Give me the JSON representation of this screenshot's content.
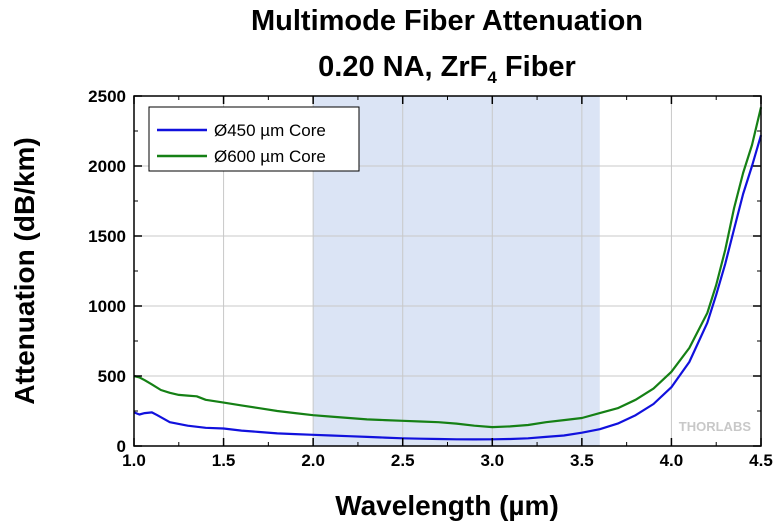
{
  "chart_data": {
    "type": "line",
    "title": "Multimode Fiber Attenuation",
    "subtitle_prefix": "0.20 NA, ZrF",
    "subtitle_subscript": "4",
    "subtitle_suffix": " Fiber",
    "xlabel": "Wavelength (µm)",
    "ylabel": "Attenuation (dB/km)",
    "xlim": [
      1.0,
      4.5
    ],
    "ylim": [
      0,
      2500
    ],
    "xticks": [
      "1.0",
      "1.5",
      "2.0",
      "2.5",
      "3.0",
      "3.5",
      "4.0",
      "4.5"
    ],
    "yticks": [
      "0",
      "500",
      "1000",
      "1500",
      "2000",
      "2500"
    ],
    "grid": true,
    "legend_position": "top-left",
    "highlight_band": {
      "x_start": 2.0,
      "x_end": 3.6,
      "color": "#dbe4f5"
    },
    "watermark": "THORLABS",
    "series": [
      {
        "name": "Ø450 µm Core",
        "color": "#1111dd",
        "x": [
          1.0,
          1.03,
          1.06,
          1.1,
          1.13,
          1.2,
          1.3,
          1.4,
          1.5,
          1.6,
          1.7,
          1.8,
          1.9,
          2.0,
          2.1,
          2.2,
          2.3,
          2.4,
          2.5,
          2.6,
          2.7,
          2.8,
          2.9,
          3.0,
          3.1,
          3.2,
          3.3,
          3.4,
          3.5,
          3.6,
          3.7,
          3.8,
          3.9,
          4.0,
          4.1,
          4.2,
          4.25,
          4.3,
          4.35,
          4.4,
          4.45,
          4.5
        ],
        "y": [
          240,
          225,
          235,
          240,
          220,
          170,
          145,
          130,
          125,
          110,
          100,
          90,
          85,
          80,
          75,
          70,
          65,
          60,
          55,
          52,
          50,
          48,
          47,
          48,
          50,
          55,
          65,
          75,
          95,
          120,
          160,
          220,
          300,
          420,
          600,
          880,
          1080,
          1300,
          1550,
          1800,
          2000,
          2220
        ]
      },
      {
        "name": "Ø600 µm Core",
        "color": "#158015",
        "x": [
          1.0,
          1.03,
          1.06,
          1.1,
          1.15,
          1.2,
          1.25,
          1.3,
          1.35,
          1.4,
          1.5,
          1.6,
          1.7,
          1.8,
          1.9,
          2.0,
          2.1,
          2.2,
          2.3,
          2.4,
          2.5,
          2.6,
          2.7,
          2.8,
          2.9,
          3.0,
          3.1,
          3.2,
          3.3,
          3.4,
          3.5,
          3.6,
          3.7,
          3.8,
          3.9,
          4.0,
          4.1,
          4.2,
          4.25,
          4.3,
          4.35,
          4.4,
          4.45,
          4.5
        ],
        "y": [
          500,
          490,
          470,
          440,
          400,
          380,
          365,
          360,
          355,
          330,
          310,
          290,
          270,
          250,
          235,
          220,
          210,
          200,
          190,
          185,
          180,
          175,
          170,
          160,
          145,
          135,
          140,
          150,
          170,
          185,
          200,
          235,
          270,
          330,
          410,
          530,
          700,
          950,
          1150,
          1400,
          1700,
          1950,
          2150,
          2420
        ]
      }
    ]
  }
}
